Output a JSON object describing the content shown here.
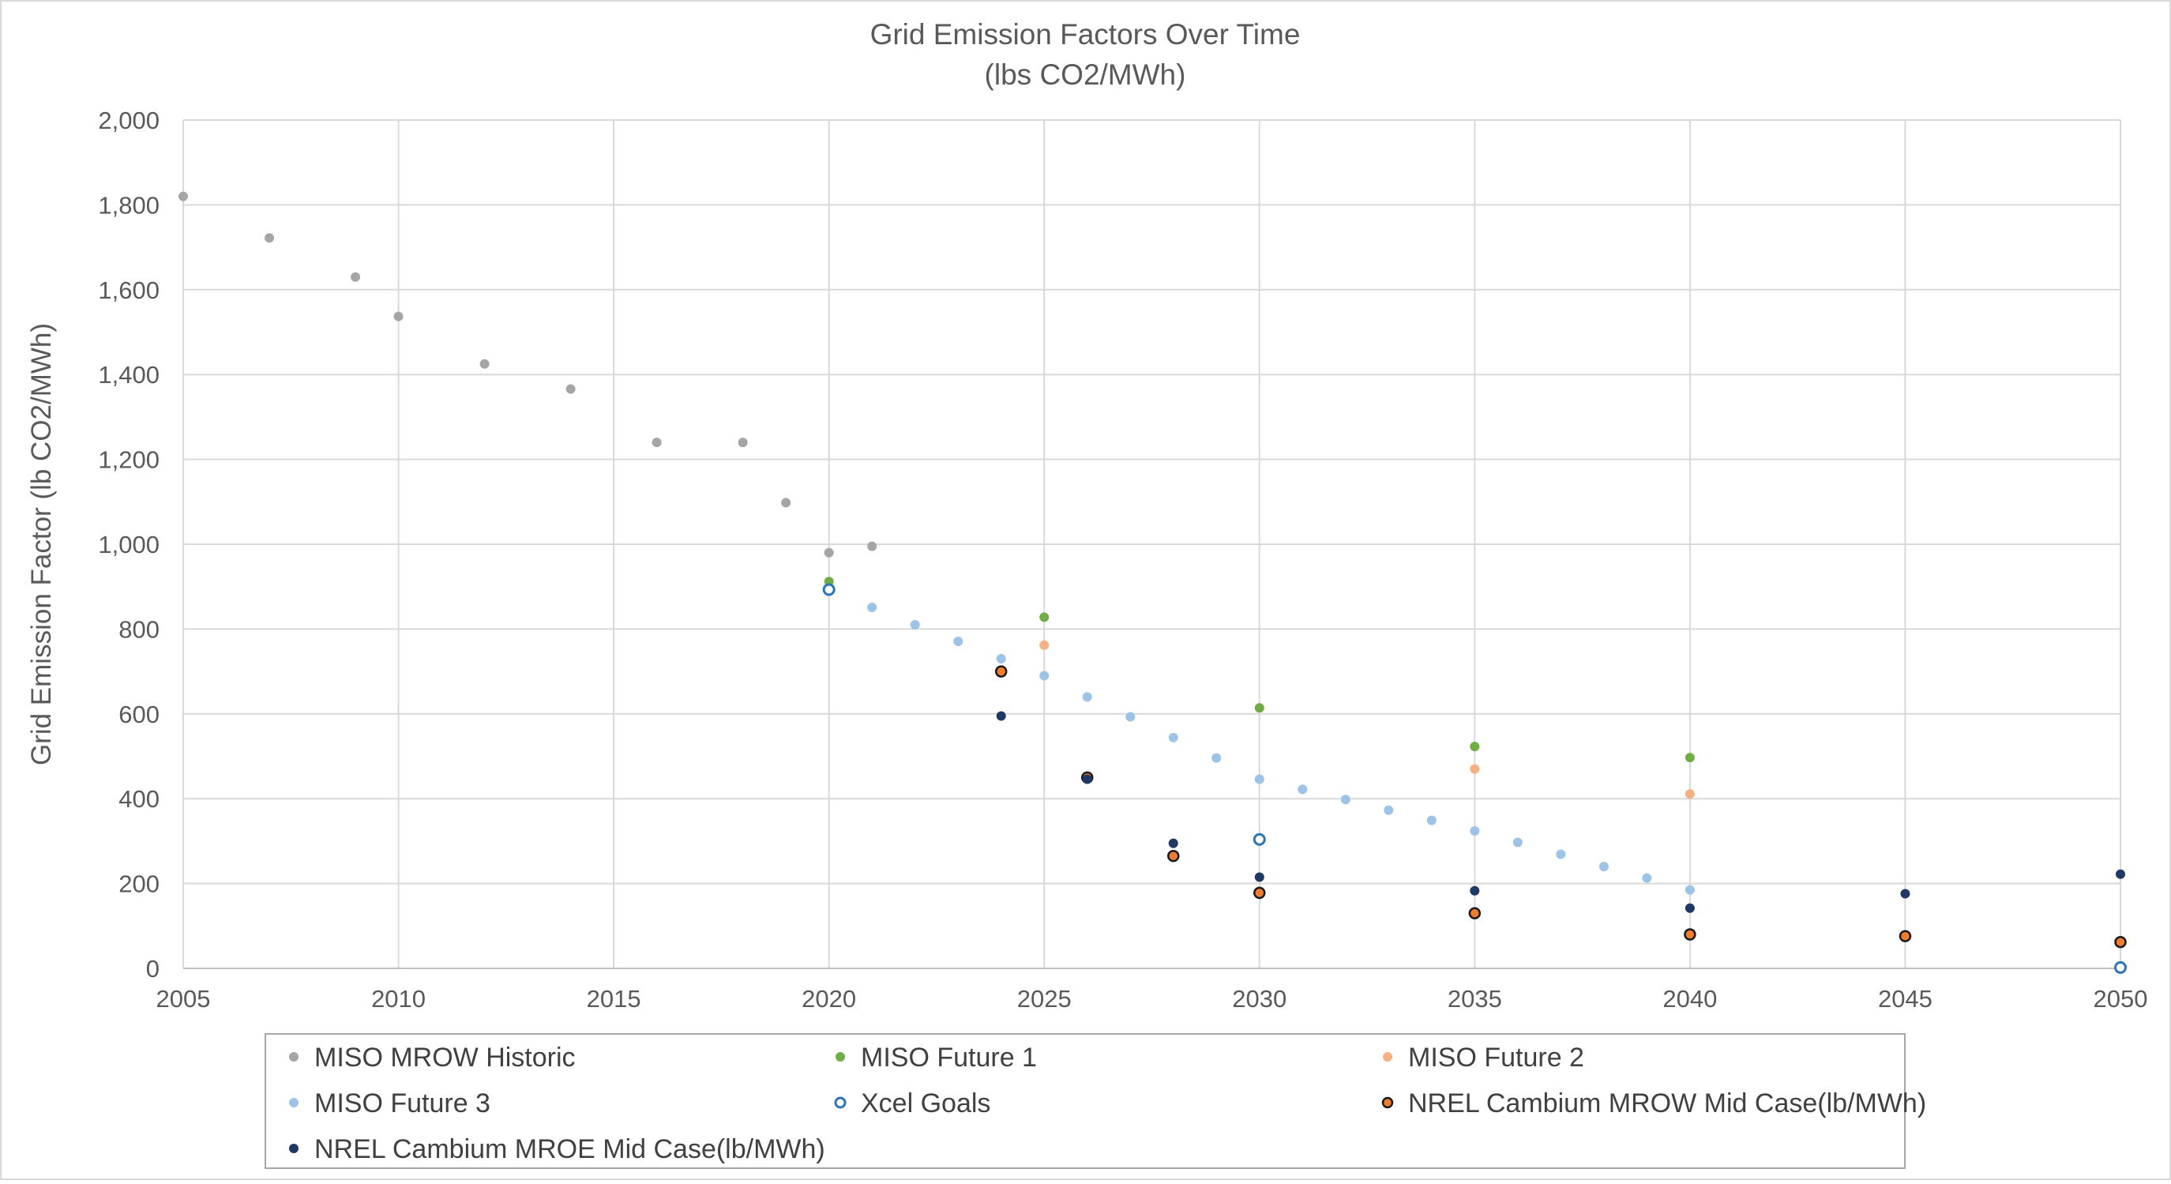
{
  "chart_data": {
    "type": "scatter",
    "title": "Grid Emission Factors Over Time",
    "subtitle": "(lbs CO2/MWh)",
    "xlabel": "",
    "ylabel": "Grid Emission Factor (lb CO2/MWh)",
    "xlim": [
      2005,
      2050
    ],
    "ylim": [
      0,
      2000
    ],
    "xticks": [
      "2005",
      "2010",
      "2015",
      "2020",
      "2025",
      "2030",
      "2035",
      "2040",
      "2045",
      "2050"
    ],
    "yticks": [
      "0",
      "200",
      "400",
      "600",
      "800",
      "1,000",
      "1,200",
      "1,400",
      "1,600",
      "1,800",
      "2,000"
    ],
    "grid": true,
    "legend_position": "bottom",
    "series": [
      {
        "name": "MISO MROW Historic",
        "color": "#A5A5A5",
        "marker": "filled",
        "points": [
          [
            2005,
            1820
          ],
          [
            2007,
            1722
          ],
          [
            2009,
            1630
          ],
          [
            2010,
            1537
          ],
          [
            2012,
            1425
          ],
          [
            2014,
            1366
          ],
          [
            2016,
            1240
          ],
          [
            2018,
            1240
          ],
          [
            2019,
            1098
          ],
          [
            2020,
            980
          ],
          [
            2021,
            995
          ]
        ]
      },
      {
        "name": "MISO Future 1",
        "color": "#70AD47",
        "marker": "filled",
        "points": [
          [
            2020,
            912
          ],
          [
            2025,
            828
          ],
          [
            2030,
            614
          ],
          [
            2035,
            523
          ],
          [
            2040,
            497
          ]
        ]
      },
      {
        "name": "MISO Future 2",
        "color": "#F4B183",
        "marker": "filled",
        "points": [
          [
            2025,
            762
          ],
          [
            2035,
            470
          ],
          [
            2040,
            411
          ]
        ]
      },
      {
        "name": "MISO Future 3",
        "color": "#9DC3E6",
        "marker": "filled",
        "points": [
          [
            2020,
            893
          ],
          [
            2021,
            851
          ],
          [
            2022,
            810
          ],
          [
            2023,
            771
          ],
          [
            2024,
            730
          ],
          [
            2025,
            690
          ],
          [
            2026,
            640
          ],
          [
            2027,
            593
          ],
          [
            2028,
            544
          ],
          [
            2029,
            496
          ],
          [
            2030,
            446
          ],
          [
            2031,
            422
          ],
          [
            2032,
            398
          ],
          [
            2033,
            373
          ],
          [
            2034,
            349
          ],
          [
            2035,
            324
          ],
          [
            2036,
            297
          ],
          [
            2037,
            269
          ],
          [
            2038,
            240
          ],
          [
            2039,
            213
          ],
          [
            2040,
            185
          ]
        ]
      },
      {
        "name": "Xcel Goals",
        "color": "#2E75B6",
        "marker": "hollow",
        "points": [
          [
            2020,
            893
          ],
          [
            2030,
            304
          ],
          [
            2050,
            2
          ]
        ]
      },
      {
        "name": "NREL Cambium MROW Mid Case(lb/MWh)",
        "color": "#ED7D31",
        "marker": "outlined",
        "points": [
          [
            2024,
            700
          ],
          [
            2026,
            450
          ],
          [
            2028,
            265
          ],
          [
            2030,
            178
          ],
          [
            2035,
            130
          ],
          [
            2040,
            80
          ],
          [
            2045,
            76
          ],
          [
            2050,
            62
          ]
        ]
      },
      {
        "name": "NREL Cambium MROE Mid Case(lb/MWh)",
        "color": "#1F3864",
        "marker": "filled",
        "points": [
          [
            2024,
            595
          ],
          [
            2026,
            446
          ],
          [
            2028,
            295
          ],
          [
            2030,
            215
          ],
          [
            2035,
            183
          ],
          [
            2040,
            142
          ],
          [
            2045,
            176
          ],
          [
            2050,
            222
          ]
        ]
      }
    ]
  }
}
